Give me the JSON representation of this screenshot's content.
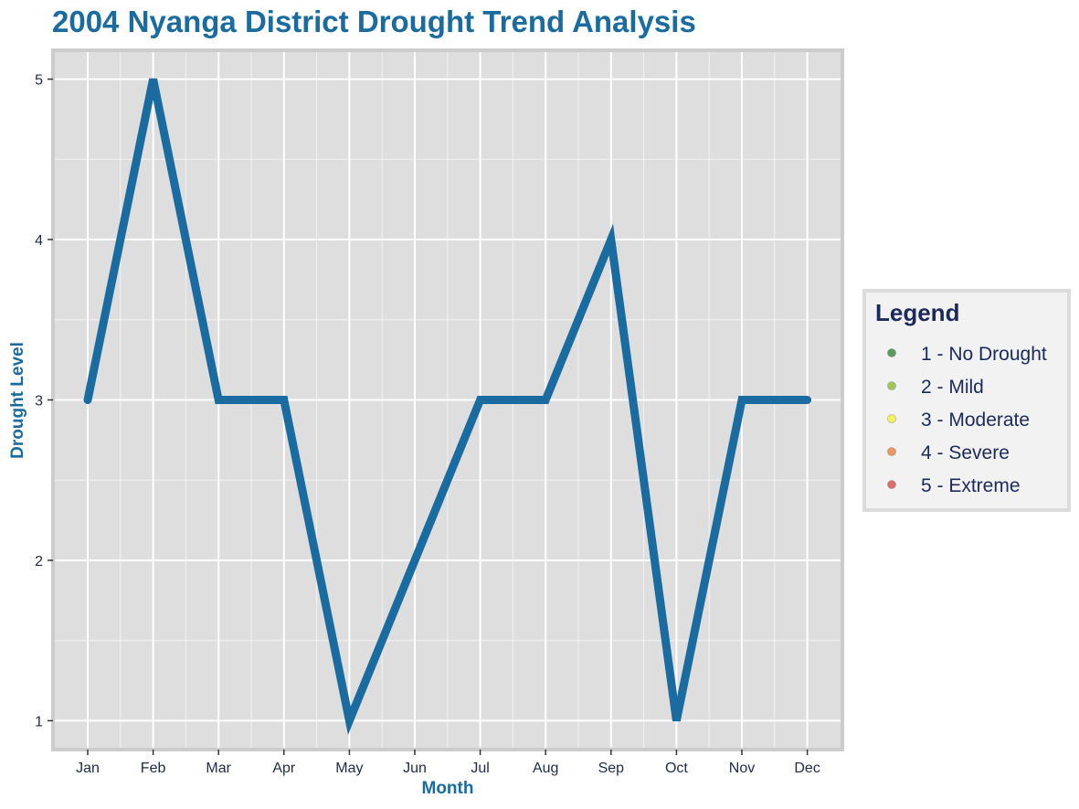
{
  "chart_data": {
    "type": "line",
    "title": "2004 Nyanga District Drought Trend Analysis",
    "xlabel": "Month",
    "ylabel": "Drought Level",
    "categories": [
      "Jan",
      "Feb",
      "Mar",
      "Apr",
      "May",
      "Jun",
      "Jul",
      "Aug",
      "Sep",
      "Oct",
      "Nov",
      "Dec"
    ],
    "series": [
      {
        "values": [
          3,
          5,
          3,
          3,
          1,
          2,
          3,
          3,
          4,
          1,
          3,
          3
        ]
      }
    ],
    "ylim": [
      0.82,
      5.18
    ],
    "yticks": [
      1,
      2,
      3,
      4,
      5
    ],
    "grid": true,
    "legend": {
      "title": "Legend",
      "position": "right",
      "items": [
        {
          "label": "1 - No Drought",
          "color": "#5a9a63"
        },
        {
          "label": "2 - Mild",
          "color": "#a3c55b"
        },
        {
          "label": "3 - Moderate",
          "color": "#f2f25c"
        },
        {
          "label": "4 - Severe",
          "color": "#e79a63"
        },
        {
          "label": "5 - Extreme",
          "color": "#dd6e6e"
        }
      ]
    },
    "colors": {
      "line": "#1a6b9f",
      "title": "#1a6b9f",
      "axis_title": "#1a6b9f",
      "legend_text": "#1b2a5a",
      "panel": "#dedede",
      "panel_border": "#cccccc",
      "grid": "#ffffff",
      "legend_bg": "#f2f2f2",
      "legend_border": "#dcdcdc"
    }
  }
}
